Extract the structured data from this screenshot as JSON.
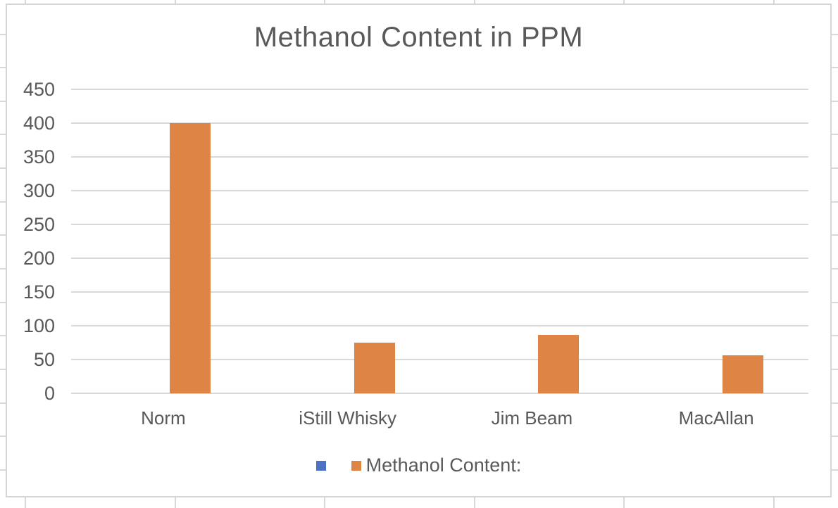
{
  "colors": {
    "background": "#FFFFFF",
    "bar_orange": "#DE8444",
    "legend_blue": "#4C72C4",
    "text_gray": "#595959",
    "plot_gridline": "#D9D9D9",
    "chart_border": "#D6D6D6",
    "sheet_gridline": "#D9D9D9"
  },
  "chart_data": {
    "type": "bar",
    "title": "Methanol Content in PPM",
    "categories": [
      "Norm",
      "iStill Whisky",
      "Jim Beam",
      "MacAllan"
    ],
    "series": [
      {
        "name": "",
        "color": "#4C72C4",
        "values": []
      },
      {
        "name": "Methanol Content:",
        "color": "#DE8444",
        "values": [
          400,
          75,
          86,
          56
        ]
      }
    ],
    "xlabel": "",
    "ylabel": "",
    "ylim": [
      0,
      450
    ],
    "yticks": [
      0,
      50,
      100,
      150,
      200,
      250,
      300,
      350,
      400,
      450
    ],
    "grid": true,
    "legend_position": "bottom"
  }
}
